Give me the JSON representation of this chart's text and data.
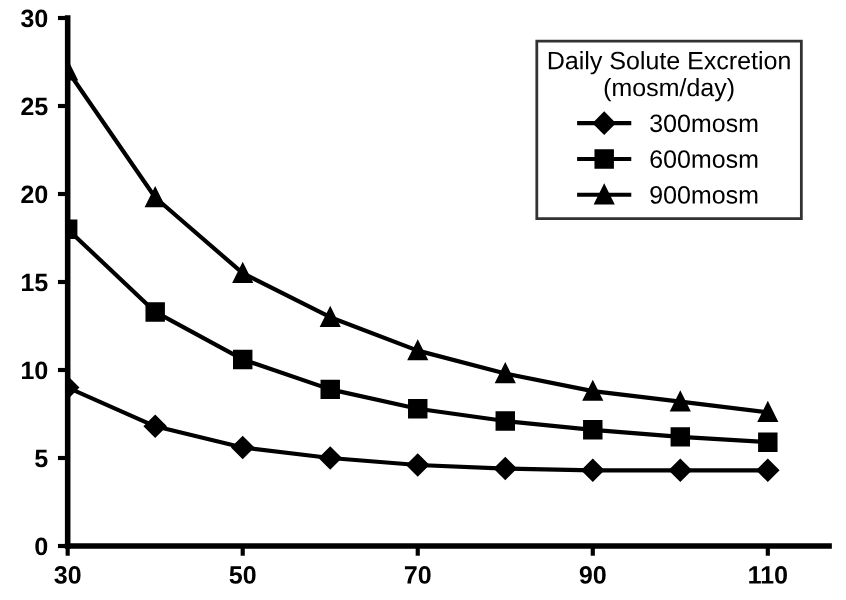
{
  "chart_data": {
    "type": "line",
    "x": [
      30,
      40,
      50,
      60,
      70,
      80,
      90,
      100,
      110
    ],
    "series": [
      {
        "name": "300mosm",
        "color": "#000000",
        "marker": "diamond",
        "values": [
          9,
          6.8,
          5.6,
          5,
          4.6,
          4.4,
          4.3,
          4.3,
          4.3
        ]
      },
      {
        "name": "600mosm",
        "color": "#000000",
        "marker": "square",
        "values": [
          18,
          13.3,
          10.6,
          8.9,
          7.8,
          7.1,
          6.6,
          6.2,
          5.9
        ]
      },
      {
        "name": "900mosm",
        "color": "#000000",
        "marker": "triangle",
        "values": [
          27,
          19.8,
          15.5,
          13,
          11.1,
          9.8,
          8.8,
          8.2,
          7.6
        ]
      }
    ],
    "legend_title": "Daily Solute Excretion\n(mosm/day)",
    "legend": "top right",
    "xlim": [
      30,
      117
    ],
    "xticks": [
      30,
      50,
      70,
      90,
      110
    ],
    "ylim": [
      0,
      30
    ],
    "yticks": [
      0,
      5,
      10,
      15,
      20,
      25,
      30
    ],
    "grid": false,
    "line_style": "solid"
  }
}
